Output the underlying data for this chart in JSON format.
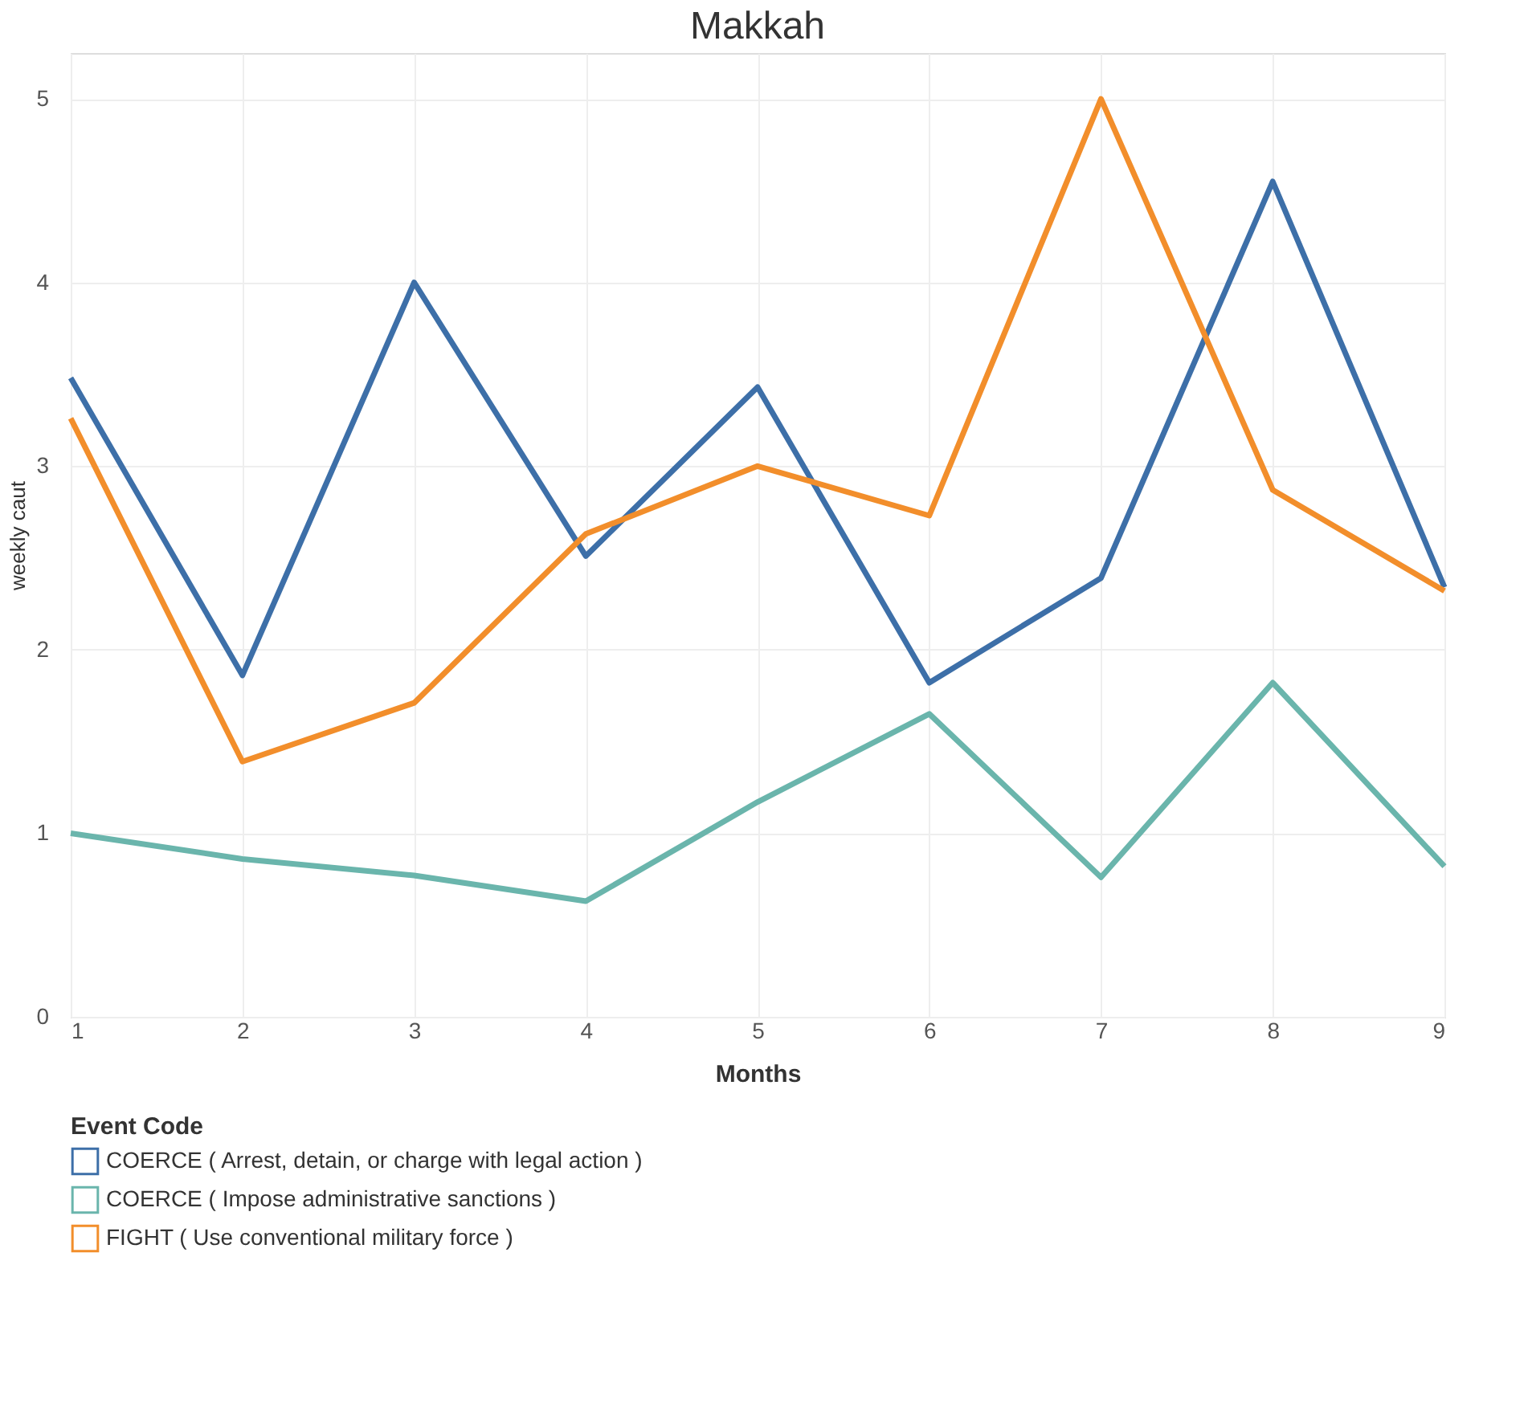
{
  "chart_data": {
    "type": "line",
    "title": "Makkah",
    "xlabel": "Months",
    "ylabel": "weekly caut",
    "legend_title": "Event Code",
    "x": [
      1,
      2,
      3,
      4,
      5,
      6,
      7,
      8,
      9
    ],
    "series": [
      {
        "name": "COERCE ( Arrest, detain, or charge with legal action  )",
        "color": "#3d6fa8",
        "values": [
          3.48,
          1.86,
          4.0,
          2.51,
          3.43,
          1.82,
          2.39,
          4.55,
          2.34
        ]
      },
      {
        "name": "COERCE ( Impose administrative sanctions )",
        "color": "#6ab5ac",
        "values": [
          1.0,
          0.86,
          0.77,
          0.63,
          1.17,
          1.65,
          0.76,
          1.82,
          0.82
        ]
      },
      {
        "name": "FIGHT ( Use conventional military force )",
        "color": "#f28e2b",
        "values": [
          3.26,
          1.39,
          1.71,
          2.63,
          3.0,
          2.73,
          5.0,
          2.87,
          2.32
        ]
      }
    ],
    "xlim": [
      1,
      9
    ],
    "xticks": [
      1,
      2,
      3,
      4,
      5,
      6,
      7,
      8,
      9
    ],
    "ylim": [
      0,
      5.25
    ],
    "yticks": [
      0,
      1,
      2,
      3,
      4,
      5
    ],
    "grid": true,
    "legend": "bottom",
    "marker": "none",
    "line_style": "solid"
  }
}
